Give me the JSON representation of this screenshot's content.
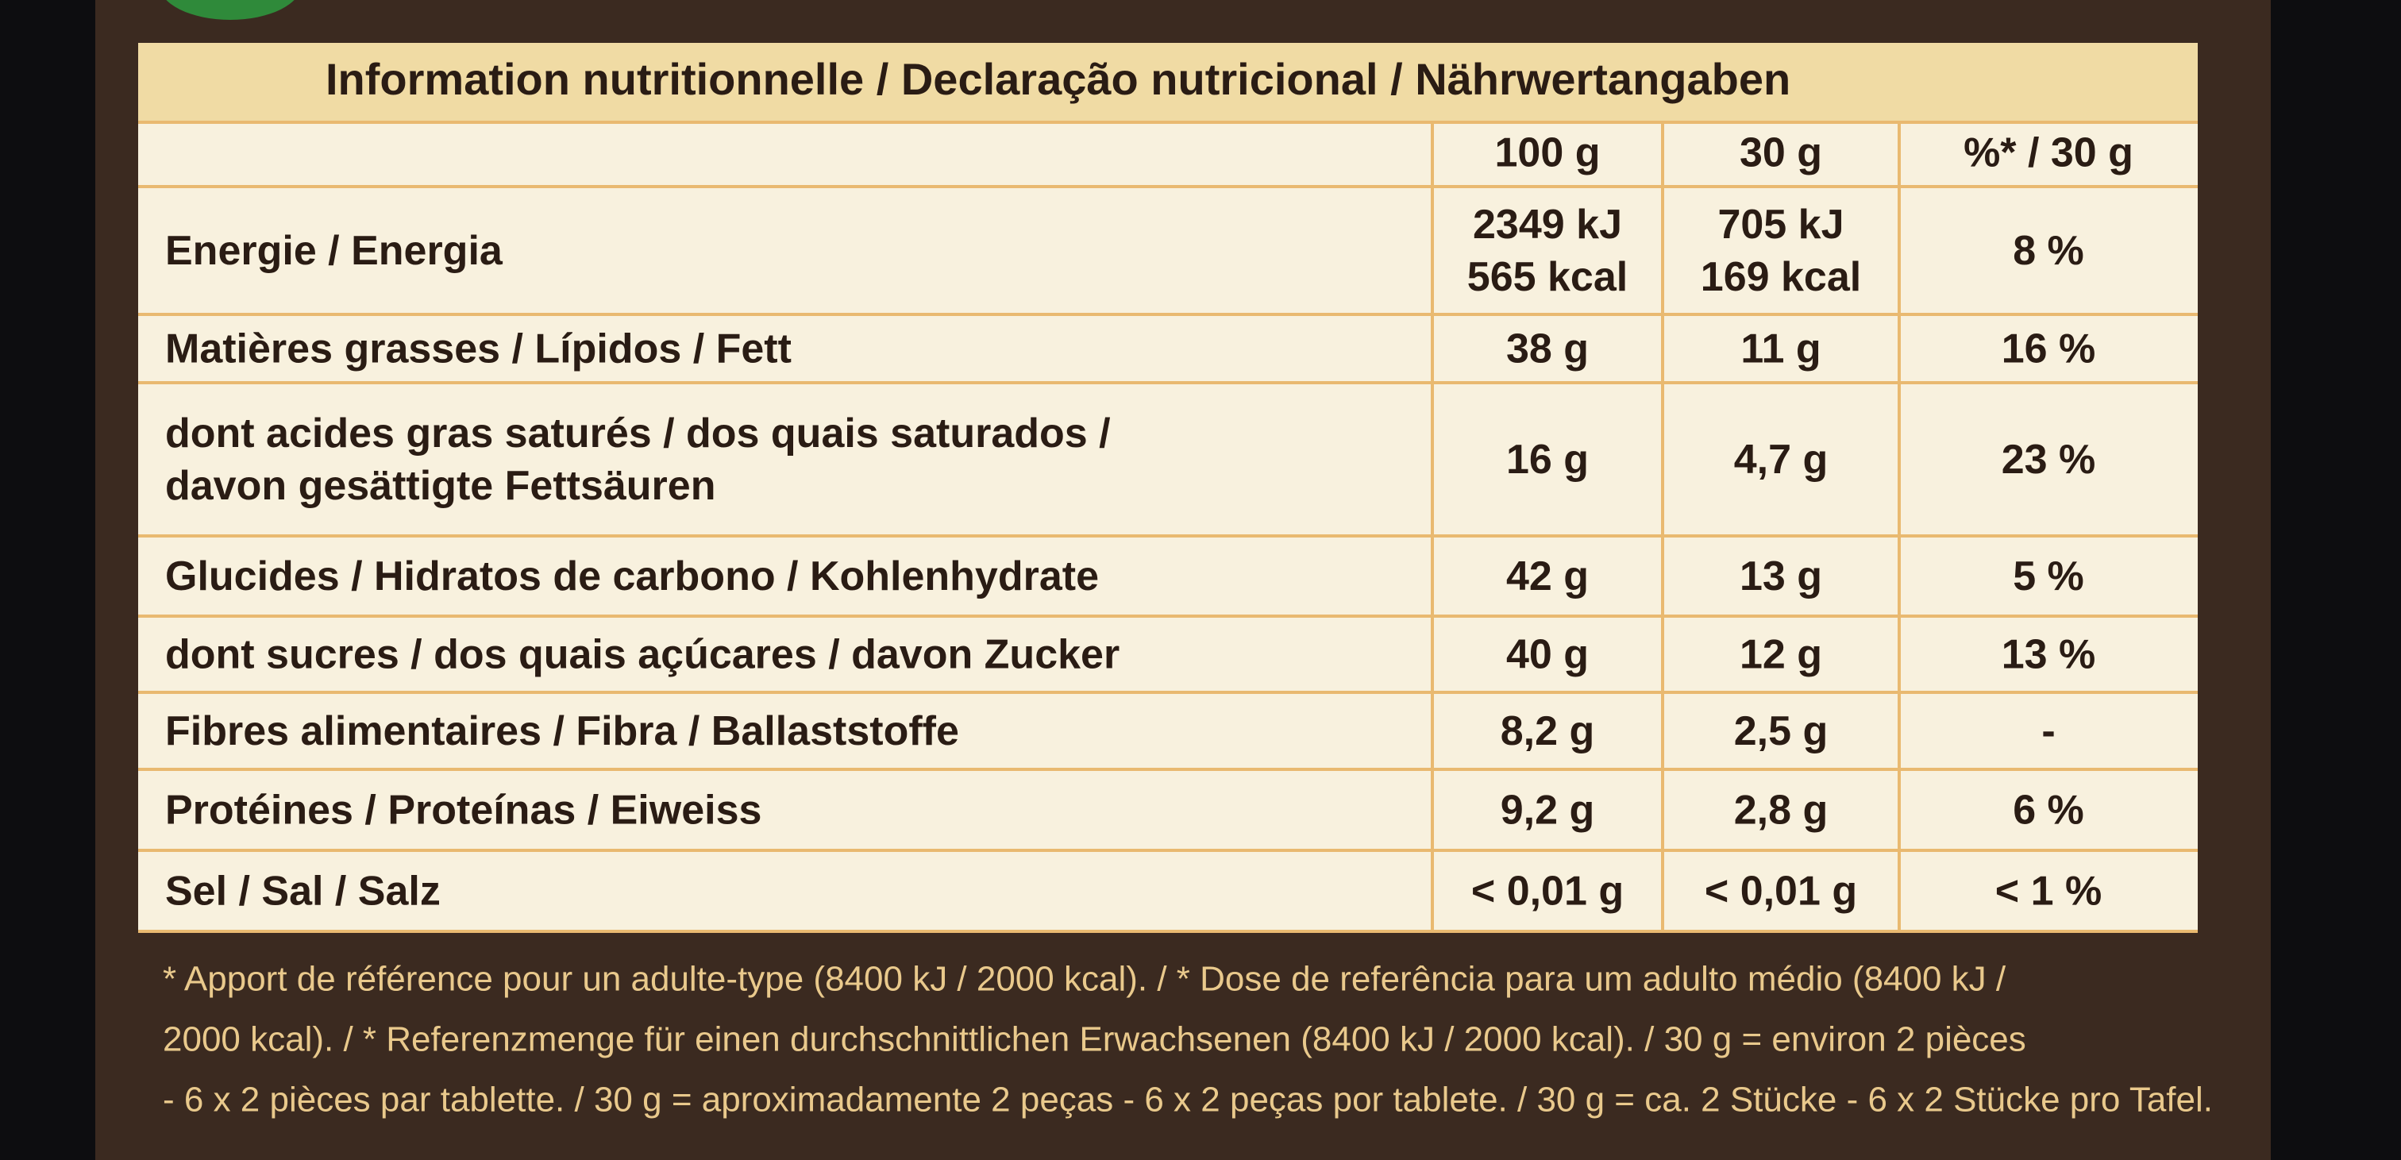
{
  "header": {
    "title": "Information nutritionnelle / Declaração nutricional / Nährwertangaben"
  },
  "table": {
    "columns": [
      "100 g",
      "30 g",
      "%* / 30 g"
    ],
    "rows": [
      {
        "label": [
          "Energie / Energia"
        ],
        "cells": [
          [
            "2349 kJ",
            "565 kcal"
          ],
          [
            "705 kJ",
            "169 kcal"
          ],
          [
            "8 %"
          ]
        ]
      },
      {
        "label": [
          "Matières grasses / Lípidos / Fett"
        ],
        "cells": [
          [
            "38 g"
          ],
          [
            "11 g"
          ],
          [
            "16 %"
          ]
        ]
      },
      {
        "label": [
          "dont acides gras saturés / dos quais saturados /",
          "davon gesättigte Fettsäuren"
        ],
        "cells": [
          [
            "16 g"
          ],
          [
            "4,7 g"
          ],
          [
            "23 %"
          ]
        ]
      },
      {
        "label": [
          "Glucides / Hidratos de carbono / Kohlenhydrate"
        ],
        "cells": [
          [
            "42 g"
          ],
          [
            "13 g"
          ],
          [
            "5 %"
          ]
        ]
      },
      {
        "label": [
          "dont sucres / dos quais açúcares / davon Zucker"
        ],
        "cells": [
          [
            "40 g"
          ],
          [
            "12 g"
          ],
          [
            "13 %"
          ]
        ]
      },
      {
        "label": [
          "Fibres alimentaires / Fibra / Ballaststoffe"
        ],
        "cells": [
          [
            "8,2 g"
          ],
          [
            "2,5 g"
          ],
          [
            "-"
          ]
        ]
      },
      {
        "label": [
          "Protéines / Proteínas / Eiweiss"
        ],
        "cells": [
          [
            "9,2 g"
          ],
          [
            "2,8 g"
          ],
          [
            "6 %"
          ]
        ]
      },
      {
        "label": [
          "Sel / Sal / Salz"
        ],
        "cells": [
          [
            "< 0,01 g"
          ],
          [
            "< 0,01 g"
          ],
          [
            "< 1 %"
          ]
        ]
      }
    ]
  },
  "footnote": [
    "* Apport de référence pour un adulte-type (8400 kJ / 2000 kcal). / * Dose de referência para um adulto médio (8400 kJ /",
    "2000 kcal). / * Referenzmenge für einen durchschnittlichen Erwachsenen (8400 kJ / 2000 kcal). / 30 g = environ 2 pièces",
    "- 6 x 2 pièces par tablette. / 30 g = aproximadamente 2 peças - 6 x 2 peças por tablete. / 30 g = ca. 2 Stücke - 6 x 2 Stücke pro Tafel."
  ]
}
